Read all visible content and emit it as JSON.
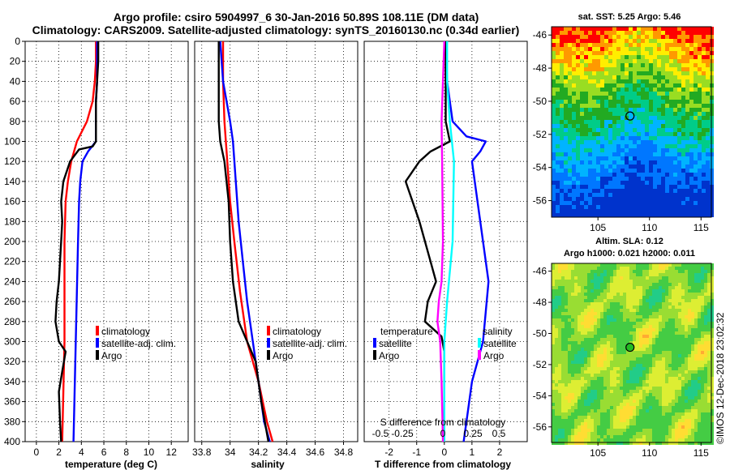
{
  "title_line1": "Argo profile: csiro 5904997_6 30-Jan-2016 50.89S 108.11E (DM data)",
  "title_line2": "Climatology: CARS2009. Satellite-adjusted climatology: synTS_20160130.nc (0.34d earlier)",
  "colors": {
    "climatology": "#ff0000",
    "satellite": "#0000ff",
    "argo": "#000000",
    "salinity": "#00ffff",
    "temperature": "#ff00ff"
  },
  "chart_data": [
    {
      "id": "temperature",
      "type": "line",
      "xlabel": "temperature (deg C)",
      "xlim": [
        -1,
        13.5
      ],
      "ylim": [
        400,
        0
      ],
      "xticks": [
        0,
        2,
        4,
        6,
        8,
        10,
        12
      ],
      "yticks": [
        0,
        20,
        40,
        60,
        80,
        100,
        120,
        140,
        160,
        180,
        200,
        220,
        240,
        260,
        280,
        300,
        320,
        340,
        360,
        380,
        400
      ],
      "legend": [
        "climatology",
        "satellite-adj. clim.",
        "Argo"
      ],
      "series": [
        {
          "name": "climatology",
          "color": "#ff0000",
          "points": [
            [
              5.3,
              0
            ],
            [
              5.3,
              20
            ],
            [
              5.2,
              40
            ],
            [
              5.0,
              60
            ],
            [
              4.5,
              80
            ],
            [
              3.6,
              100
            ],
            [
              3.1,
              120
            ],
            [
              2.8,
              140
            ],
            [
              2.6,
              160
            ],
            [
              2.5,
              200
            ],
            [
              2.5,
              250
            ],
            [
              2.5,
              300
            ],
            [
              2.4,
              350
            ],
            [
              2.3,
              400
            ]
          ]
        },
        {
          "name": "satellite-adj. clim.",
          "color": "#0000ff",
          "points": [
            [
              5.4,
              0
            ],
            [
              5.4,
              20
            ],
            [
              5.4,
              40
            ],
            [
              5.3,
              60
            ],
            [
              5.3,
              80
            ],
            [
              5.3,
              100
            ],
            [
              4.6,
              110
            ],
            [
              4.1,
              120
            ],
            [
              3.9,
              140
            ],
            [
              3.8,
              160
            ],
            [
              3.7,
              200
            ],
            [
              3.6,
              250
            ],
            [
              3.5,
              300
            ],
            [
              3.4,
              350
            ],
            [
              3.3,
              400
            ]
          ]
        },
        {
          "name": "Argo",
          "color": "#000000",
          "points": [
            [
              5.5,
              0
            ],
            [
              5.5,
              20
            ],
            [
              5.4,
              40
            ],
            [
              5.3,
              60
            ],
            [
              5.3,
              80
            ],
            [
              5.3,
              100
            ],
            [
              5.0,
              105
            ],
            [
              3.8,
              108
            ],
            [
              3.0,
              120
            ],
            [
              2.4,
              140
            ],
            [
              2.2,
              160
            ],
            [
              2.3,
              180
            ],
            [
              2.2,
              200
            ],
            [
              2.1,
              220
            ],
            [
              2.0,
              240
            ],
            [
              1.8,
              260
            ],
            [
              1.7,
              280
            ],
            [
              2.0,
              300
            ],
            [
              2.6,
              310
            ],
            [
              2.3,
              330
            ],
            [
              2.0,
              350
            ],
            [
              2.1,
              380
            ],
            [
              2.2,
              400
            ]
          ]
        }
      ]
    },
    {
      "id": "salinity",
      "type": "line",
      "xlabel": "salinity",
      "xlim": [
        33.75,
        34.9
      ],
      "ylim": [
        400,
        0
      ],
      "xticks": [
        33.8,
        34,
        34.2,
        34.4,
        34.6,
        34.8
      ],
      "xticklabels": [
        "33.8",
        "34",
        "34.2",
        "34.4",
        "34.6",
        "34.8"
      ],
      "legend": [
        "climatology",
        "satellite-adj. clim.",
        "Argo"
      ],
      "series": [
        {
          "name": "climatology",
          "color": "#ff0000",
          "points": [
            [
              33.95,
              0
            ],
            [
              33.95,
              40
            ],
            [
              33.96,
              80
            ],
            [
              33.98,
              120
            ],
            [
              34.0,
              160
            ],
            [
              34.03,
              200
            ],
            [
              34.07,
              250
            ],
            [
              34.12,
              300
            ],
            [
              34.2,
              340
            ],
            [
              34.26,
              380
            ],
            [
              34.3,
              400
            ]
          ]
        },
        {
          "name": "satellite-adj. clim.",
          "color": "#0000ff",
          "points": [
            [
              33.93,
              0
            ],
            [
              33.95,
              40
            ],
            [
              34.0,
              80
            ],
            [
              34.02,
              100
            ],
            [
              34.04,
              140
            ],
            [
              34.06,
              180
            ],
            [
              34.09,
              220
            ],
            [
              34.12,
              260
            ],
            [
              34.16,
              300
            ],
            [
              34.2,
              340
            ],
            [
              34.24,
              380
            ],
            [
              34.28,
              400
            ]
          ]
        },
        {
          "name": "Argo",
          "color": "#000000",
          "points": [
            [
              33.92,
              0
            ],
            [
              33.92,
              40
            ],
            [
              33.92,
              80
            ],
            [
              33.93,
              100
            ],
            [
              33.96,
              120
            ],
            [
              33.99,
              160
            ],
            [
              34.0,
              200
            ],
            [
              34.02,
              240
            ],
            [
              34.06,
              280
            ],
            [
              34.12,
              300
            ],
            [
              34.18,
              320
            ],
            [
              34.22,
              360
            ],
            [
              34.27,
              400
            ]
          ]
        }
      ]
    },
    {
      "id": "difference",
      "type": "line",
      "xlabel": "T difference from climatology",
      "xlim": [
        -2.9,
        3.0
      ],
      "ylim": [
        400,
        0
      ],
      "xticks": [
        -2,
        -1,
        0,
        1,
        2
      ],
      "xticklabels": [
        "-2",
        "-1",
        "0",
        "1",
        "2"
      ],
      "legend_left_title": "temperature",
      "legend_right_title": "salinity",
      "legend_left": [
        "satellite",
        "Argo"
      ],
      "legend_right": [
        "satellite",
        "Argo"
      ],
      "top_axis_label": "S difference from climatology",
      "top_ticklabels": [
        "-0.5",
        "-0.25",
        "0",
        "0.25",
        "0.5"
      ],
      "series": [
        {
          "name": "temperature satellite",
          "color": "#0000ff",
          "points": [
            [
              0.05,
              0
            ],
            [
              0.1,
              40
            ],
            [
              0.3,
              80
            ],
            [
              0.8,
              95
            ],
            [
              1.5,
              100
            ],
            [
              1.3,
              110
            ],
            [
              1.0,
              120
            ],
            [
              1.2,
              160
            ],
            [
              1.4,
              200
            ],
            [
              1.6,
              240
            ],
            [
              1.4,
              300
            ],
            [
              1.0,
              340
            ],
            [
              0.8,
              380
            ],
            [
              0.7,
              400
            ]
          ]
        },
        {
          "name": "temperature Argo",
          "color": "#000000",
          "points": [
            [
              0.05,
              0
            ],
            [
              0.05,
              60
            ],
            [
              0.05,
              80
            ],
            [
              0.2,
              100
            ],
            [
              -0.5,
              110
            ],
            [
              -0.9,
              120
            ],
            [
              -1.4,
              140
            ],
            [
              -0.9,
              180
            ],
            [
              -0.5,
              220
            ],
            [
              -0.3,
              240
            ],
            [
              -0.6,
              260
            ],
            [
              -0.7,
              280
            ],
            [
              -0.1,
              295
            ],
            [
              0.0,
              310
            ],
            [
              0.0,
              400
            ]
          ]
        },
        {
          "name": "salinity satellite",
          "color": "#00ffff",
          "points": [
            [
              0.1,
              0
            ],
            [
              0.1,
              40
            ],
            [
              0.2,
              80
            ],
            [
              0.35,
              120
            ],
            [
              0.3,
              200
            ],
            [
              0.1,
              260
            ],
            [
              0.0,
              300
            ],
            [
              0.0,
              400
            ]
          ]
        },
        {
          "name": "salinity Argo",
          "color": "#ff00ff",
          "points": [
            [
              0.0,
              0
            ],
            [
              -0.05,
              40
            ],
            [
              -0.1,
              80
            ],
            [
              -0.08,
              120
            ],
            [
              -0.05,
              200
            ],
            [
              -0.1,
              240
            ],
            [
              -0.2,
              260
            ],
            [
              -0.25,
              280
            ],
            [
              -0.15,
              300
            ],
            [
              -0.1,
              340
            ],
            [
              -0.05,
              400
            ]
          ]
        }
      ]
    },
    {
      "id": "sst_map",
      "type": "heatmap",
      "title": "sat. SST: 5.25 Argo: 5.46",
      "xticks": [
        105,
        110,
        115
      ],
      "yticks": [
        -46,
        -48,
        -50,
        -52,
        -54,
        -56
      ],
      "xlim": [
        100.5,
        116
      ],
      "ylim": [
        -57,
        -45.5
      ],
      "argo_position": [
        108.11,
        -50.89
      ]
    },
    {
      "id": "sla_map",
      "type": "heatmap",
      "title_line1": "Altim. SLA: 0.12",
      "title_line2": "Argo h1000: 0.021 h2000: 0.011",
      "xticks": [
        105,
        110,
        115
      ],
      "yticks": [
        -46,
        -48,
        -50,
        -52,
        -54,
        -56
      ],
      "xlim": [
        100.5,
        116
      ],
      "ylim": [
        -57,
        -45.5
      ],
      "argo_position": [
        108.11,
        -50.89
      ]
    }
  ],
  "credit": "©IMOS 12-Dec-2018 23:02:32"
}
